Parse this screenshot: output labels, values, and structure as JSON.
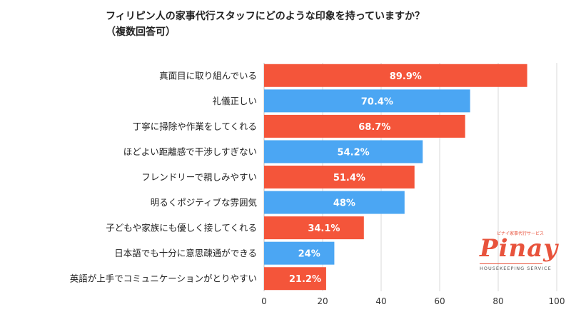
{
  "title": {
    "line1": "フィリピン人の家事代行スタッフにどのような印象を持っていますか？",
    "line2": "（複数回答可）"
  },
  "colors": {
    "red": "#f4553a",
    "blue": "#4ba6f3"
  },
  "chart_data": {
    "type": "bar",
    "orientation": "horizontal",
    "categories": [
      "真面目に取り組んでいる",
      "礼儀正しい",
      "丁寧に掃除や作業をしてくれる",
      "ほどよい距離感で干渉しすぎない",
      "フレンドリーで親しみやすい",
      "明るくポジティブな雰囲気",
      "子どもや家族にも優しく接してくれる",
      "日本語でも十分に意思疎通ができる",
      "英語が上手でコミュニケーションがとりやすい"
    ],
    "values": [
      89.9,
      70.4,
      68.7,
      54.2,
      51.4,
      48,
      34.1,
      24,
      21.2
    ],
    "value_labels": [
      "89.9%",
      "70.4%",
      "68.7%",
      "54.2%",
      "51.4%",
      "48%",
      "34.1%",
      "24%",
      "21.2%"
    ],
    "bar_colors": [
      "red",
      "blue",
      "red",
      "blue",
      "red",
      "blue",
      "red",
      "blue",
      "red"
    ],
    "xlim": [
      0,
      100
    ],
    "xticks": [
      0,
      20,
      40,
      60,
      80,
      100
    ],
    "grid": true
  },
  "logo": {
    "top_text": "ピナイ家事代行サービス",
    "main_text": "Pinay",
    "sub_text": "HOUSEKEEPING SERVICE"
  }
}
